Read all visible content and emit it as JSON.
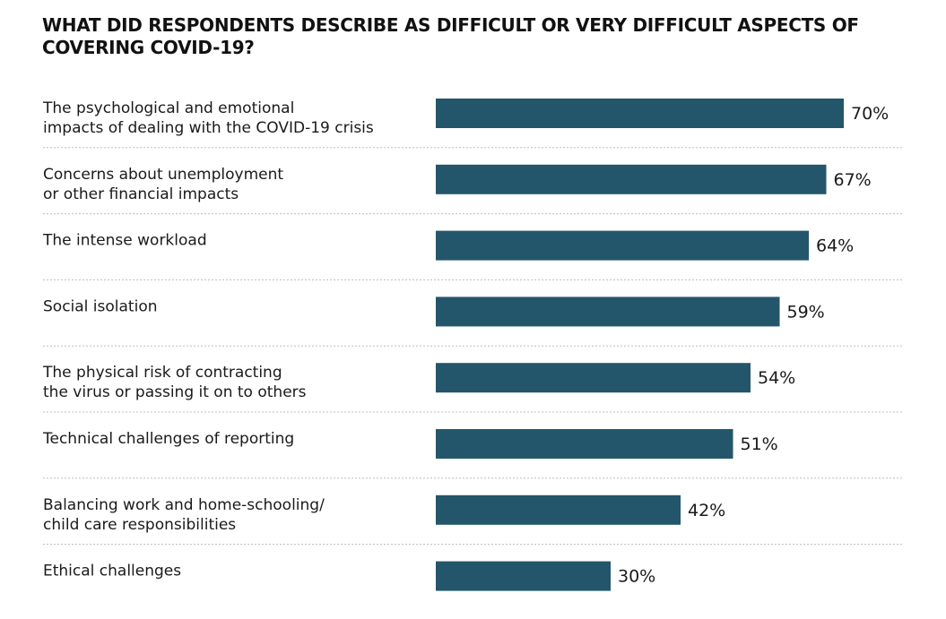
{
  "chart_data": {
    "type": "bar",
    "orientation": "horizontal",
    "title": "WHAT DID RESPONDENTS DESCRIBE AS DIFFICULT OR VERY DIFFICULT ASPECTS OF COVERING COVID-19?",
    "categories": [
      [
        "The psychological and emotional",
        "impacts of dealing with the COVID-19 crisis"
      ],
      [
        "Concerns about unemployment",
        "or other financial impacts"
      ],
      [
        "The intense workload"
      ],
      [
        "Social isolation"
      ],
      [
        "The physical risk of contracting",
        "the virus or passing it on to others"
      ],
      [
        "Technical challenges of reporting"
      ],
      [
        "Balancing work and home-schooling/",
        "child care responsibilities"
      ],
      [
        "Ethical challenges"
      ]
    ],
    "values": [
      70,
      67,
      64,
      59,
      54,
      51,
      42,
      30
    ],
    "value_labels": [
      "70%",
      "67%",
      "64%",
      "59%",
      "54%",
      "51%",
      "42%",
      "30%"
    ],
    "bar_color": "#23566a",
    "separator_color": "#bdbdbd",
    "xlim": [
      0,
      100
    ],
    "grid": false,
    "legend": "none"
  }
}
